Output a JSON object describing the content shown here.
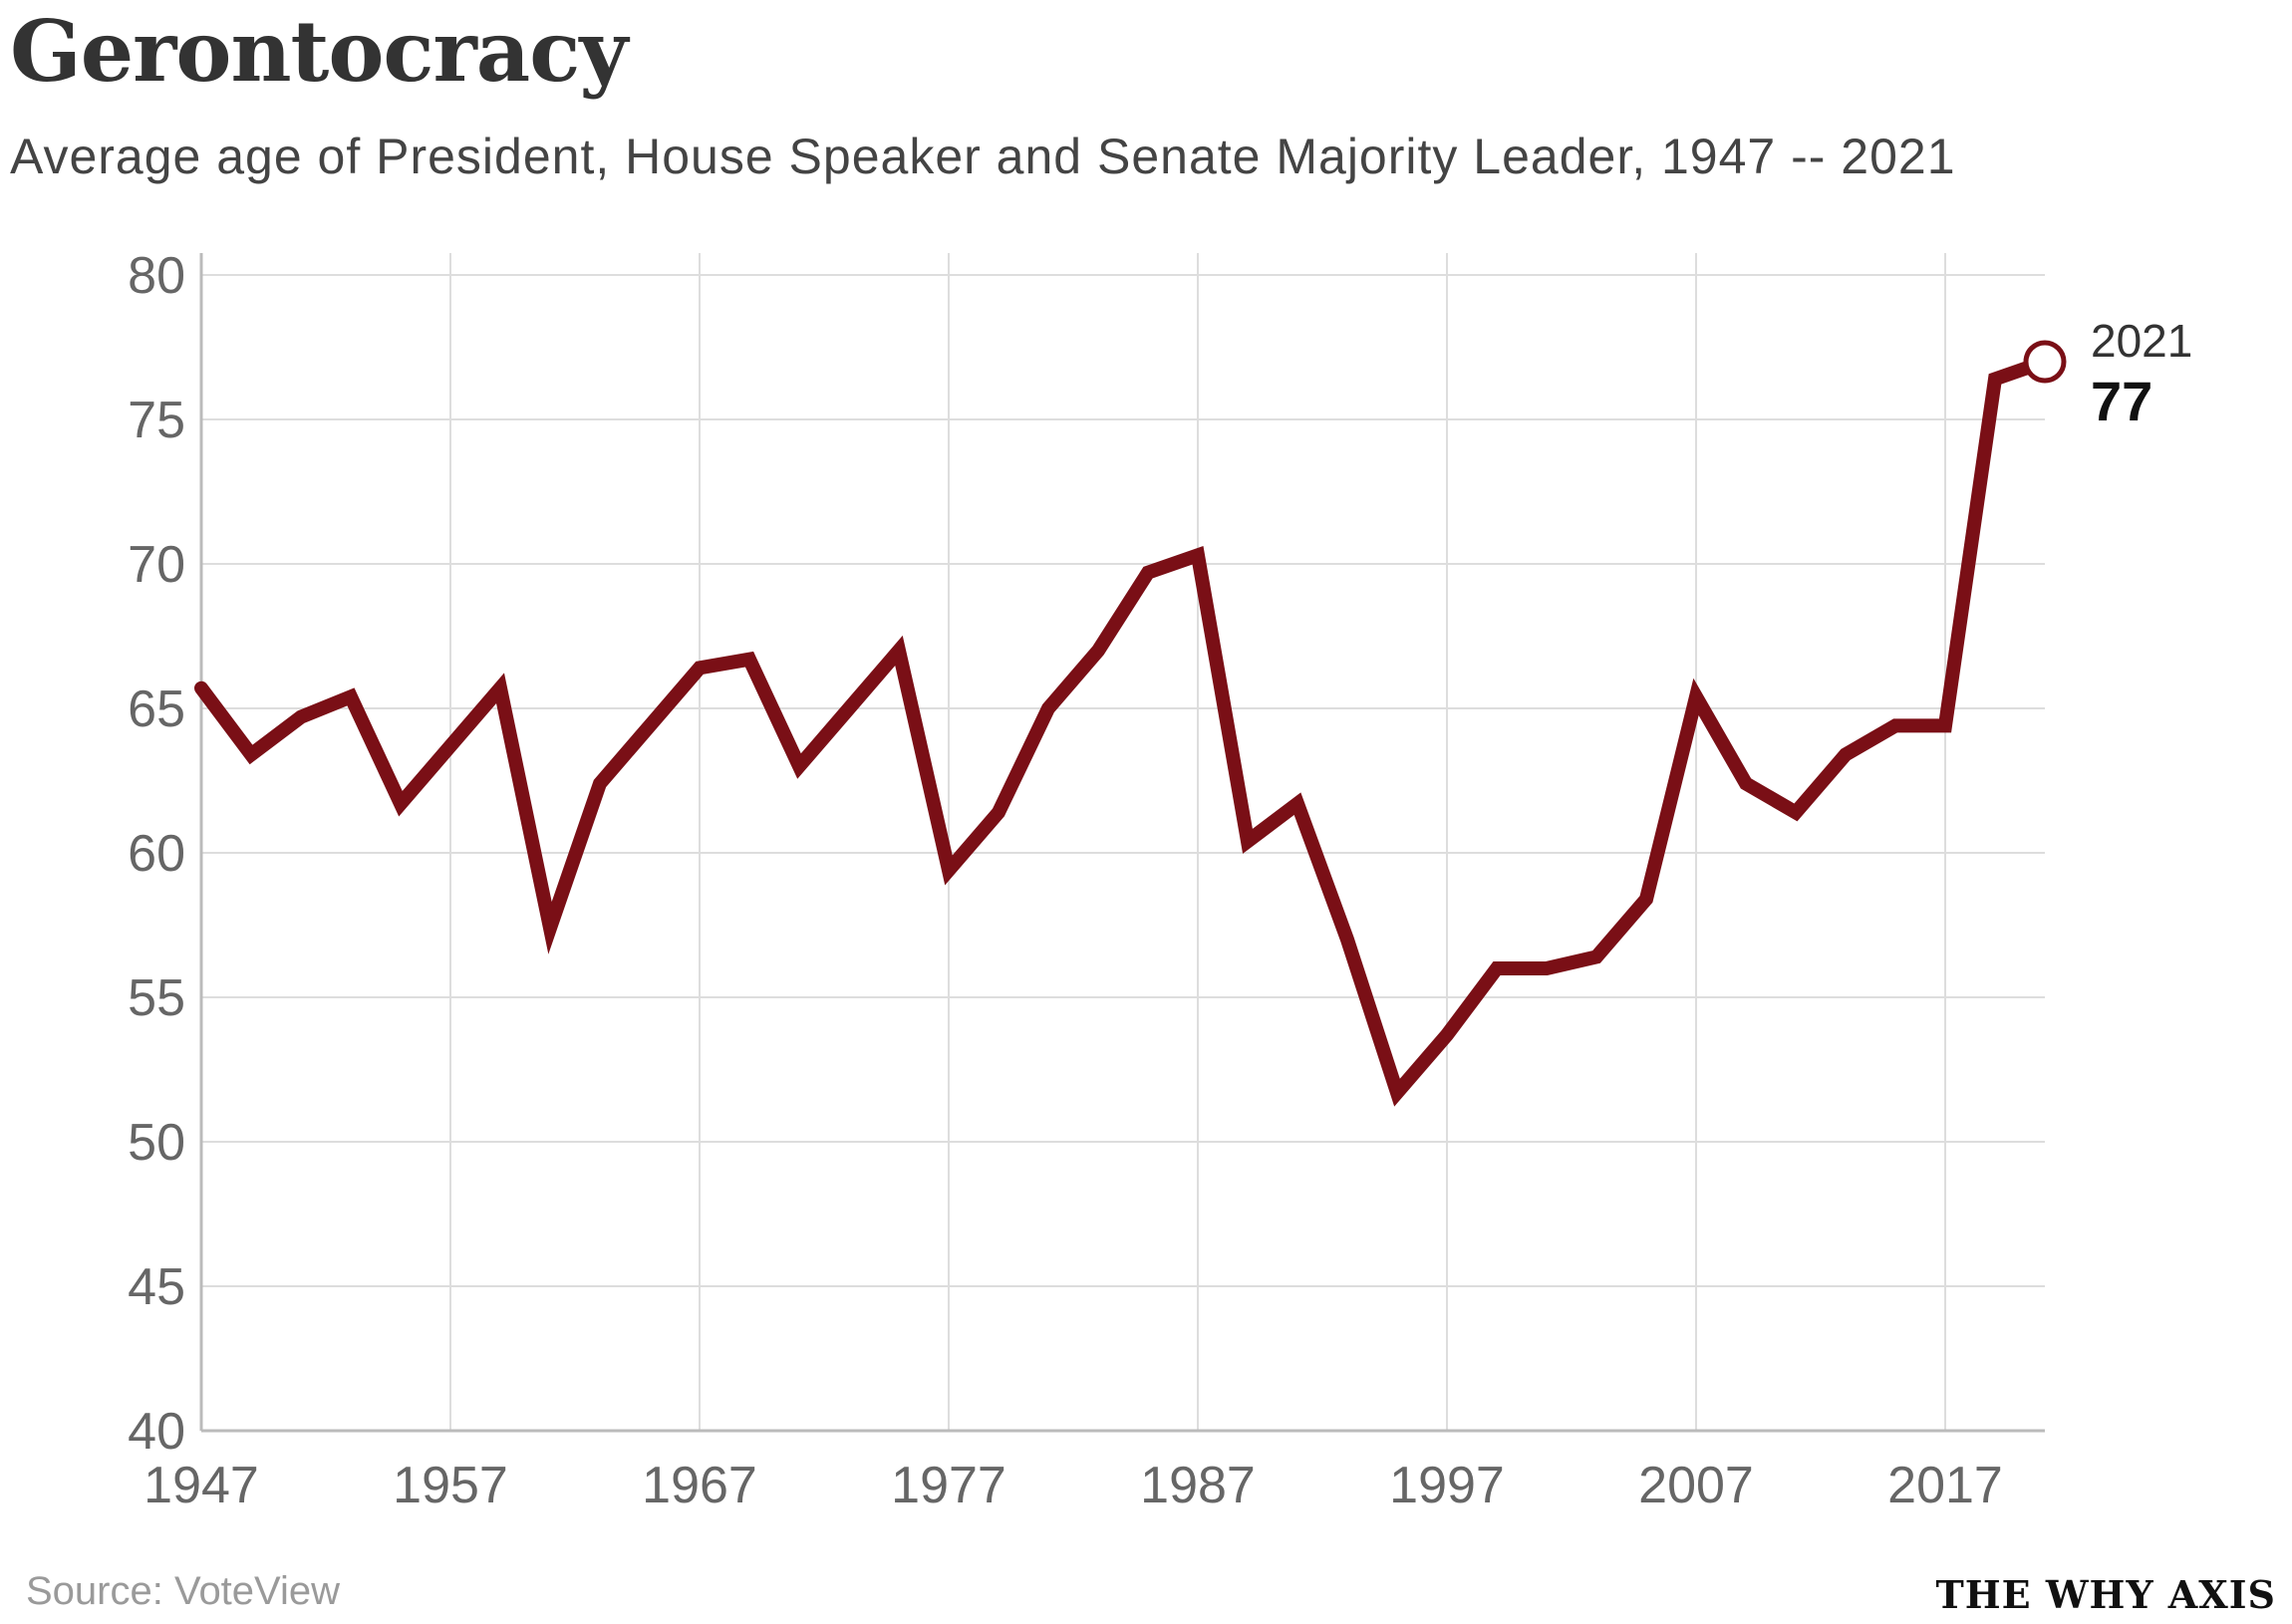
{
  "header": {
    "title": "Gerontocracy",
    "subtitle": "Average age of President, House Speaker and Senate Majority Leader, 1947 -- 2021"
  },
  "footer": {
    "source": "Source: VoteView",
    "brand": "THE WHY AXIS"
  },
  "colors": {
    "line": "#7a0f16",
    "grid": "#dddddd",
    "axis": "#bbbbbb"
  },
  "chart_data": {
    "type": "line",
    "title": "Gerontocracy",
    "subtitle": "Average age of President, House Speaker and Senate Majority Leader, 1947 -- 2021",
    "xlabel": "",
    "ylabel": "",
    "xlim": [
      1947,
      2021
    ],
    "ylim": [
      40,
      80
    ],
    "x_ticks": [
      "1947",
      "1957",
      "1967",
      "1977",
      "1987",
      "1997",
      "2007",
      "2017"
    ],
    "y_ticks": [
      "40",
      "45",
      "50",
      "55",
      "60",
      "65",
      "70",
      "75",
      "80"
    ],
    "grid": true,
    "series": [
      {
        "x": [
          1947,
          1949,
          1951,
          1953,
          1955,
          1957,
          1959,
          1961,
          1963,
          1965,
          1967,
          1969,
          1971,
          1973,
          1975,
          1977,
          1979,
          1981,
          1983,
          1985,
          1987,
          1989,
          1991,
          1993,
          1995,
          1997,
          1999,
          2001,
          2003,
          2005,
          2007,
          2009,
          2011,
          2013,
          2015,
          2017,
          2019,
          2021
        ],
        "values": [
          65.7,
          63.4,
          64.7,
          65.4,
          61.7,
          63.7,
          65.7,
          57.4,
          62.4,
          64.4,
          66.4,
          66.7,
          63.0,
          65.0,
          67.0,
          59.4,
          61.4,
          65.0,
          67.0,
          69.7,
          70.3,
          60.4,
          61.7,
          57.0,
          51.7,
          53.7,
          56.0,
          56.0,
          56.4,
          58.4,
          65.4,
          62.4,
          61.4,
          63.4,
          64.4,
          64.4,
          76.4,
          77.0
        ]
      }
    ],
    "annotation": {
      "year": "2021",
      "value": "77"
    }
  }
}
